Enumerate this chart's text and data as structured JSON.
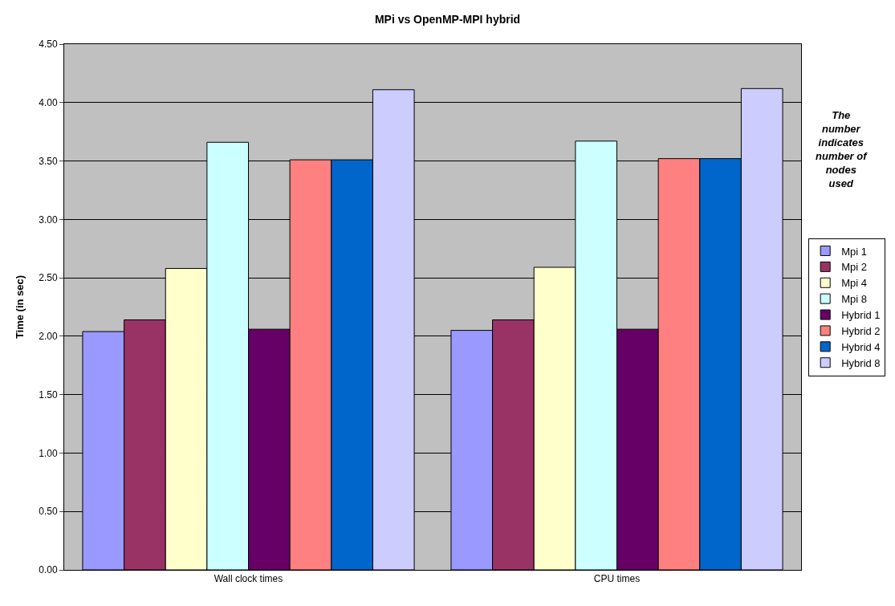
{
  "chart_data": {
    "type": "bar",
    "title": "MPi vs OpenMP-MPI hybrid",
    "ylabel": "Time (in sec)",
    "categories": [
      "Wall clock times",
      "CPU times"
    ],
    "series": [
      {
        "name": "Mpi 1",
        "color": "#9999ff",
        "values": [
          2.04,
          2.05
        ]
      },
      {
        "name": "Mpi 2",
        "color": "#993366",
        "values": [
          2.14,
          2.14
        ]
      },
      {
        "name": "Mpi 4",
        "color": "#ffffcc",
        "values": [
          2.58,
          2.59
        ]
      },
      {
        "name": "Mpi 8",
        "color": "#ccffff",
        "values": [
          3.66,
          3.67
        ]
      },
      {
        "name": "Hybrid 1",
        "color": "#660066",
        "values": [
          2.06,
          2.06
        ]
      },
      {
        "name": "Hybrid 2",
        "color": "#ff8080",
        "values": [
          3.51,
          3.52
        ]
      },
      {
        "name": "Hybrid 4",
        "color": "#0066cc",
        "values": [
          3.51,
          3.52
        ]
      },
      {
        "name": "Hybrid 8",
        "color": "#ccccff",
        "values": [
          4.11,
          4.12
        ]
      }
    ],
    "ylim": [
      0,
      4.5
    ],
    "yticks": [
      {
        "value": 0,
        "label": "0.00"
      },
      {
        "value": 0.5,
        "label": "0.50"
      },
      {
        "value": 1,
        "label": "1.00"
      },
      {
        "value": 1.5,
        "label": "1.50"
      },
      {
        "value": 2,
        "label": "2.00"
      },
      {
        "value": 2.5,
        "label": "2.50"
      },
      {
        "value": 3,
        "label": "3.00"
      },
      {
        "value": 3.5,
        "label": "3.50"
      },
      {
        "value": 4,
        "label": "4.00"
      },
      {
        "value": 4.5,
        "label": "4.50"
      }
    ],
    "grid": "y",
    "legend": "right",
    "annotations": [
      "The number indicates number of nodes used"
    ]
  }
}
